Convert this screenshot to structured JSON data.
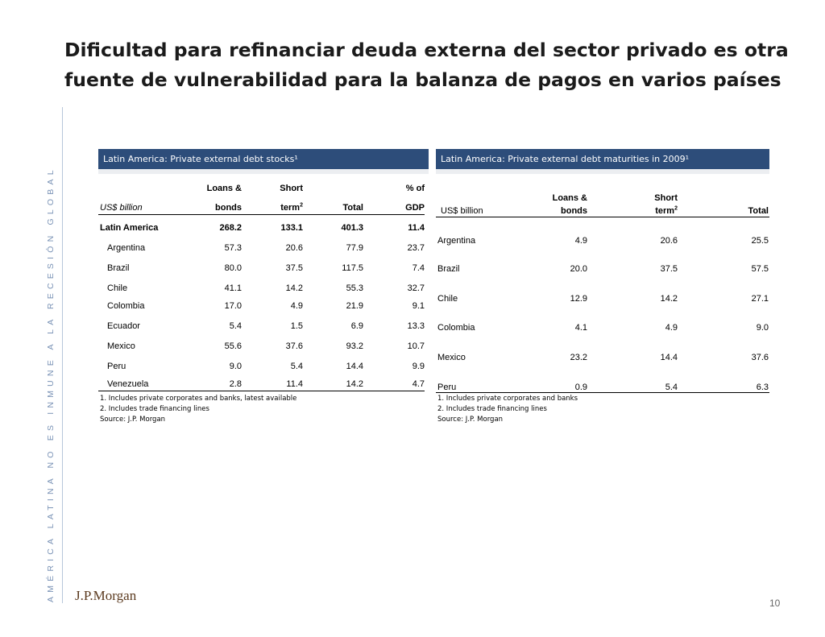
{
  "title": "Dificultad para refinanciar deuda externa del sector privado es otra fuente de vulnerabilidad para la balanza de pagos en varios países",
  "side_text": "AMÉRICA LATINA NO ES INMUNE A LA RECESIÓN GLOBAL",
  "logo": "J.P.Morgan",
  "page_number": "10",
  "table1": {
    "heading": "Latin America: Private external debt stocks¹",
    "unit_label": "US$ billion",
    "col_top": [
      "Loans &",
      "Short",
      "",
      "% of"
    ],
    "col_bottom": [
      "bonds",
      "term²",
      "Total",
      "GDP"
    ],
    "rows": [
      {
        "name": "Latin America",
        "values": [
          "268.2",
          "133.1",
          "401.3",
          "11.4"
        ]
      },
      {
        "name": "Argentina",
        "values": [
          "57.3",
          "20.6",
          "77.9",
          "23.7"
        ]
      },
      {
        "name": "Brazil",
        "values": [
          "80.0",
          "37.5",
          "117.5",
          "7.4"
        ]
      },
      {
        "name": "Chile",
        "values": [
          "41.1",
          "14.2",
          "55.3",
          "32.7"
        ]
      },
      {
        "name": "Colombia",
        "values": [
          "17.0",
          "4.9",
          "21.9",
          "9.1"
        ]
      },
      {
        "name": "Ecuador",
        "values": [
          "5.4",
          "1.5",
          "6.9",
          "13.3"
        ]
      },
      {
        "name": "Mexico",
        "values": [
          "55.6",
          "37.6",
          "93.2",
          "10.7"
        ]
      },
      {
        "name": "Peru",
        "values": [
          "9.0",
          "5.4",
          "14.4",
          "9.9"
        ]
      },
      {
        "name": "Venezuela",
        "values": [
          "2.8",
          "11.4",
          "14.2",
          "4.7"
        ]
      }
    ],
    "notes": [
      "1. Includes private corporates and banks, latest available",
      "2. Includes trade financing lines",
      "Source: J.P. Morgan"
    ]
  },
  "table2": {
    "heading": "Latin America: Private external debt maturities in 2009¹",
    "unit_label": "US$ billion",
    "col_top": [
      "Loans &",
      "Short",
      ""
    ],
    "col_bottom": [
      "bonds",
      "term²",
      "Total"
    ],
    "rows": [
      {
        "name": "Argentina",
        "values": [
          "4.9",
          "20.6",
          "25.5"
        ]
      },
      {
        "name": "Brazil",
        "values": [
          "20.0",
          "37.5",
          "57.5"
        ]
      },
      {
        "name": "Chile",
        "values": [
          "12.9",
          "14.2",
          "27.1"
        ]
      },
      {
        "name": "Colombia",
        "values": [
          "4.1",
          "4.9",
          "9.0"
        ]
      },
      {
        "name": "Mexico",
        "values": [
          "23.2",
          "14.4",
          "37.6"
        ]
      },
      {
        "name": "Peru",
        "values": [
          "0.9",
          "5.4",
          "6.3"
        ]
      }
    ],
    "notes": [
      "1. Includes private corporates and banks",
      "2. Includes trade financing lines",
      "Source: J.P. Morgan"
    ]
  }
}
